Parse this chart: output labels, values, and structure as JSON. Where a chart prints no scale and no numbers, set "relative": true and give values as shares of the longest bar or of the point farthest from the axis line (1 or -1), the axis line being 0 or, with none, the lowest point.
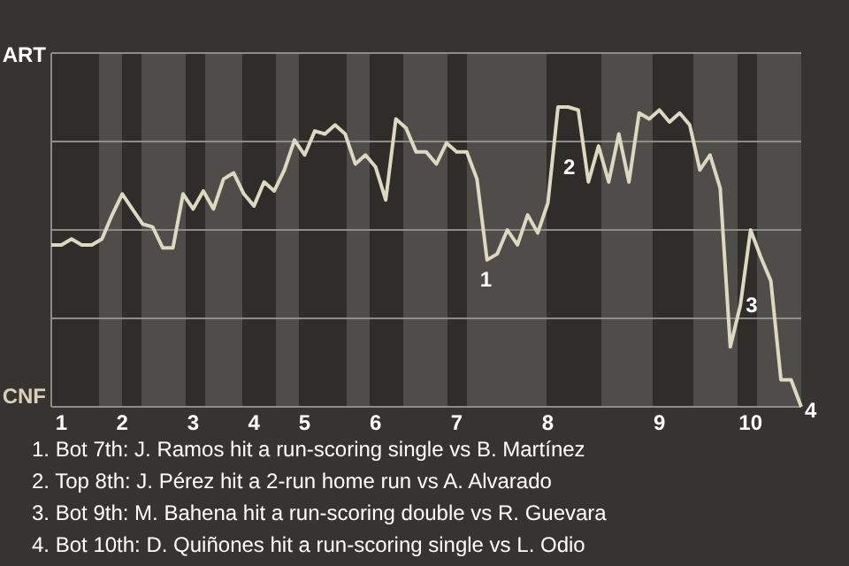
{
  "chart_data": {
    "type": "line",
    "relative": true,
    "grid": true,
    "categories": [
      null,
      "1",
      null,
      null,
      null,
      null,
      null,
      "2",
      null,
      null,
      null,
      null,
      null,
      null,
      "3",
      null,
      null,
      null,
      null,
      null,
      "4",
      null,
      null,
      null,
      null,
      "5",
      null,
      null,
      null,
      null,
      null,
      null,
      "6",
      null,
      null,
      null,
      null,
      null,
      null,
      null,
      "7",
      null,
      null,
      null,
      null,
      null,
      null,
      null,
      null,
      "8",
      null,
      null,
      null,
      null,
      null,
      null,
      null,
      null,
      null,
      null,
      "9",
      null,
      null,
      null,
      null,
      null,
      null,
      null,
      null,
      "10",
      null,
      null,
      null,
      null,
      null
    ],
    "series": [
      {
        "color": "#ddd8c0",
        "values": [
          0.54,
          0.54,
          0.56,
          0.54,
          0.54,
          0.56,
          0.64,
          0.71,
          0.66,
          0.61,
          0.6,
          0.53,
          0.53,
          0.71,
          0.66,
          0.72,
          0.66,
          0.76,
          0.78,
          0.71,
          0.67,
          0.75,
          0.72,
          0.79,
          0.89,
          0.84,
          0.92,
          0.91,
          0.94,
          0.91,
          0.81,
          0.84,
          0.8,
          0.69,
          0.96,
          0.93,
          0.85,
          0.85,
          0.81,
          0.88,
          0.85,
          0.85,
          0.76,
          0.49,
          0.51,
          0.59,
          0.54,
          0.64,
          0.58,
          0.68,
          1,
          1,
          0.99,
          0.75,
          0.87,
          0.75,
          0.91,
          0.75,
          0.98,
          0.96,
          0.99,
          0.95,
          0.98,
          0.94,
          0.79,
          0.84,
          0.73,
          0.2,
          0.34,
          0.59,
          0.5,
          0.42,
          0.09,
          0.09,
          0
        ]
      }
    ],
    "annotations": [
      "ART",
      "CNF",
      "1",
      "2",
      "3",
      "4",
      "1. Bot 7th: J. Ramos hit a run-scoring single vs B. Martínez",
      "2. Top 8th: J. Pérez hit a 2-run home run vs A. Alvarado",
      "3. Bot 9th: M. Bahena hit a run-scoring double vs R. Guevara",
      "4. Bot 10th: D. Quiñones hit a run-scoring single vs L. Odio"
    ]
  }
}
